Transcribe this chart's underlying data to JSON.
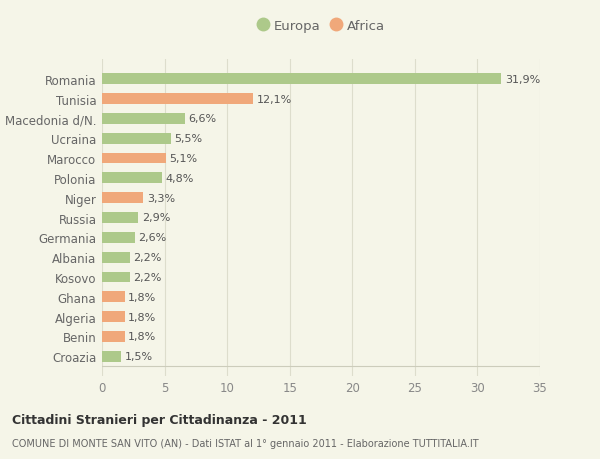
{
  "categories": [
    "Romania",
    "Tunisia",
    "Macedonia d/N.",
    "Ucraina",
    "Marocco",
    "Polonia",
    "Niger",
    "Russia",
    "Germania",
    "Albania",
    "Kosovo",
    "Ghana",
    "Algeria",
    "Benin",
    "Croazia"
  ],
  "values": [
    31.9,
    12.1,
    6.6,
    5.5,
    5.1,
    4.8,
    3.3,
    2.9,
    2.6,
    2.2,
    2.2,
    1.8,
    1.8,
    1.8,
    1.5
  ],
  "labels": [
    "31,9%",
    "12,1%",
    "6,6%",
    "5,5%",
    "5,1%",
    "4,8%",
    "3,3%",
    "2,9%",
    "2,6%",
    "2,2%",
    "2,2%",
    "1,8%",
    "1,8%",
    "1,8%",
    "1,5%"
  ],
  "continents": [
    "Europa",
    "Africa",
    "Europa",
    "Europa",
    "Africa",
    "Europa",
    "Africa",
    "Europa",
    "Europa",
    "Europa",
    "Europa",
    "Africa",
    "Africa",
    "Africa",
    "Europa"
  ],
  "color_europa": "#adc98a",
  "color_africa": "#f0a87a",
  "background_color": "#f5f5e8",
  "title_bold": "Cittadini Stranieri per Cittadinanza - 2011",
  "subtitle": "COMUNE DI MONTE SAN VITO (AN) - Dati ISTAT al 1° gennaio 2011 - Elaborazione TUTTITALIA.IT",
  "xlim": [
    0,
    35
  ],
  "xticks": [
    0,
    5,
    10,
    15,
    20,
    25,
    30,
    35
  ],
  "legend_europa": "Europa",
  "legend_africa": "Africa"
}
